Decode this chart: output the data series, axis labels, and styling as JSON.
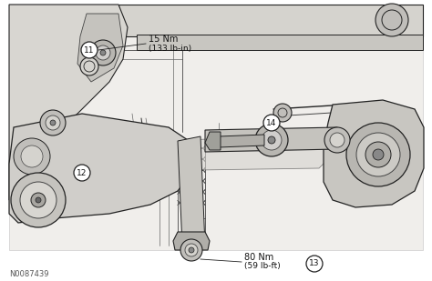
{
  "figure_width": 4.74,
  "figure_height": 3.09,
  "dpi": 100,
  "bg_color": "#ffffff",
  "photo_bg": "#e8e6e1",
  "line_color": "#666666",
  "dark_line": "#222222",
  "med_line": "#444444",
  "label_11": "11",
  "label_12": "12",
  "label_13": "13",
  "label_14": "14",
  "torque_1_line1": "15 Nm",
  "torque_1_line2": "(133 lb-in)",
  "torque_2_line1": "80 Nm",
  "torque_2_line2": "(59 lb-ft)",
  "figure_id": "N0087439",
  "callout_fontsize": 6.5,
  "id_fontsize": 6,
  "annotation_fontsize": 7
}
